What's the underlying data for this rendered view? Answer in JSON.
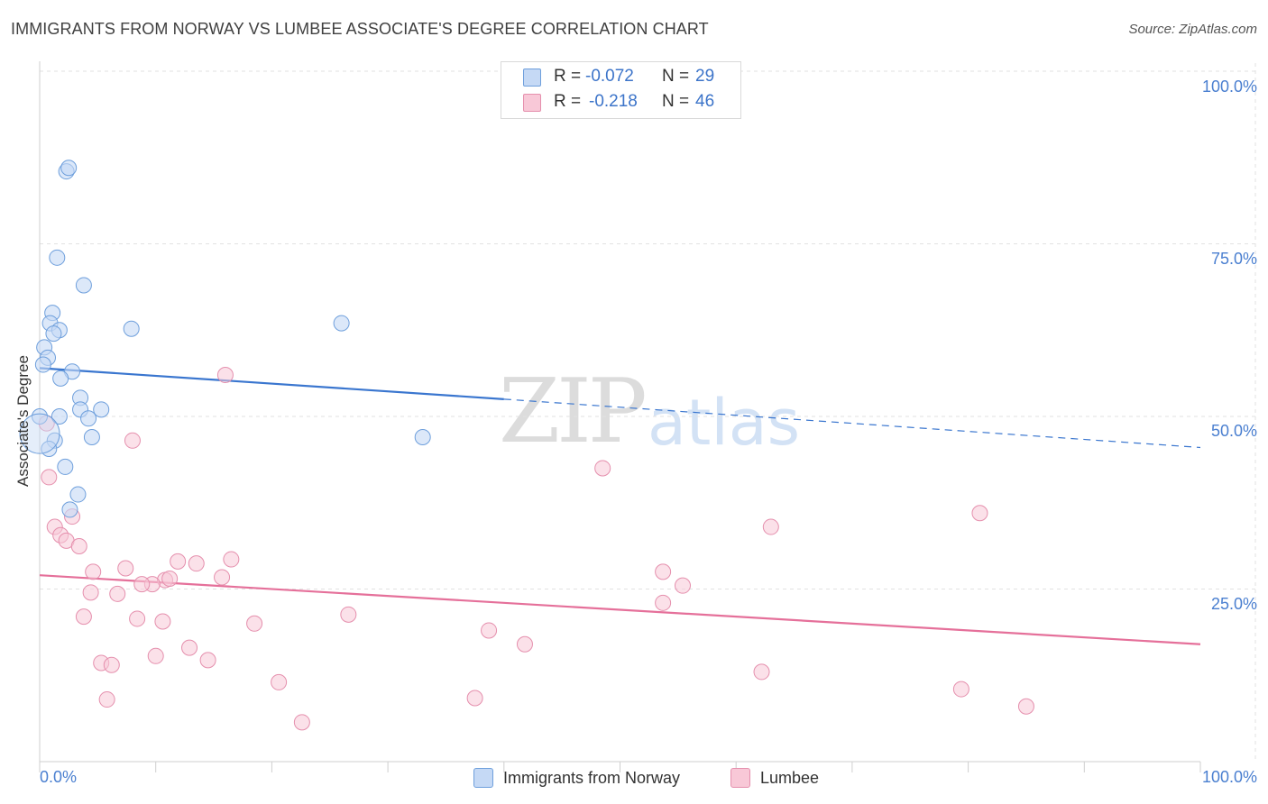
{
  "title": "IMMIGRANTS FROM NORWAY VS LUMBEE ASSOCIATE'S DEGREE CORRELATION CHART",
  "source": "Source: ZipAtlas.com",
  "watermark": {
    "zip": "ZIP",
    "atlas": "atlas"
  },
  "legend": {
    "rows": [
      {
        "r_label": "R =",
        "r_value": "-0.072",
        "n_label": "N =",
        "n_value": "29"
      },
      {
        "r_label": "R =",
        "r_value": "-0.218",
        "n_label": "N =",
        "n_value": "46"
      }
    ]
  },
  "bottom_legend": {
    "series1": "Immigrants from Norway",
    "series2": "Lumbee"
  },
  "colors": {
    "blue_fill": "#c5d9f5",
    "blue_stroke": "#6e9fdc",
    "blue_line": "#3a76cf",
    "pink_fill": "#f8c8d7",
    "pink_stroke": "#e58fad",
    "pink_line": "#e5709a",
    "tick_text": "#4a7fd0"
  },
  "chart_data": {
    "type": "scatter",
    "title": "IMMIGRANTS FROM NORWAY VS LUMBEE ASSOCIATE'S DEGREE CORRELATION CHART",
    "xlabel": "",
    "ylabel": "Associate's Degree",
    "xlim": [
      0,
      100
    ],
    "ylim": [
      0,
      100
    ],
    "x_tick_labels": [
      "0.0%",
      "100.0%"
    ],
    "y_tick_labels": [
      "100.0%",
      "75.0%",
      "50.0%",
      "25.0%"
    ],
    "grid": true,
    "legend_position": "top-center",
    "series": [
      {
        "name": "Immigrants from Norway",
        "r": -0.072,
        "n": 29,
        "trend": {
          "x": [
            0,
            40
          ],
          "y": [
            57.0,
            52.5
          ],
          "dashed_to": [
            100,
            45.5
          ]
        },
        "points": [
          [
            2.3,
            85.5
          ],
          [
            2.5,
            86.0
          ],
          [
            1.5,
            73.0
          ],
          [
            3.8,
            69.0
          ],
          [
            1.1,
            65.0
          ],
          [
            0.9,
            63.5
          ],
          [
            1.7,
            62.5
          ],
          [
            1.2,
            62.0
          ],
          [
            7.9,
            62.7
          ],
          [
            26.0,
            63.5
          ],
          [
            0.4,
            60.0
          ],
          [
            0.7,
            58.5
          ],
          [
            0.3,
            57.5
          ],
          [
            2.8,
            56.5
          ],
          [
            1.8,
            55.5
          ],
          [
            3.5,
            52.7
          ],
          [
            3.5,
            51.0
          ],
          [
            5.3,
            51.0
          ],
          [
            1.7,
            50.0
          ],
          [
            4.2,
            49.7
          ],
          [
            0.0,
            50.0
          ],
          [
            1.3,
            46.5
          ],
          [
            4.5,
            47.0
          ],
          [
            33.0,
            47.0
          ],
          [
            0.8,
            45.3
          ],
          [
            2.2,
            42.7
          ],
          [
            3.3,
            38.7
          ],
          [
            2.6,
            36.5
          ],
          [
            0.0,
            47.5
          ]
        ]
      },
      {
        "name": "Lumbee",
        "r": -0.218,
        "n": 46,
        "trend": {
          "x": [
            0,
            100
          ],
          "y": [
            27.0,
            17.0
          ]
        },
        "points": [
          [
            16.0,
            56.0
          ],
          [
            0.6,
            49.0
          ],
          [
            8.0,
            46.5
          ],
          [
            0.8,
            41.2
          ],
          [
            48.5,
            42.5
          ],
          [
            1.3,
            34.0
          ],
          [
            2.8,
            35.5
          ],
          [
            1.8,
            32.8
          ],
          [
            2.3,
            32.0
          ],
          [
            3.4,
            31.2
          ],
          [
            63.0,
            34.0
          ],
          [
            81.0,
            36.0
          ],
          [
            7.4,
            28.0
          ],
          [
            11.9,
            29.0
          ],
          [
            13.5,
            28.7
          ],
          [
            16.5,
            29.3
          ],
          [
            4.6,
            27.5
          ],
          [
            15.7,
            26.7
          ],
          [
            10.8,
            26.3
          ],
          [
            11.2,
            26.5
          ],
          [
            9.7,
            25.7
          ],
          [
            8.8,
            25.7
          ],
          [
            53.7,
            27.5
          ],
          [
            55.4,
            25.5
          ],
          [
            4.4,
            24.5
          ],
          [
            6.7,
            24.3
          ],
          [
            53.7,
            23.0
          ],
          [
            3.8,
            21.0
          ],
          [
            8.4,
            20.7
          ],
          [
            10.6,
            20.3
          ],
          [
            18.5,
            20.0
          ],
          [
            26.6,
            21.3
          ],
          [
            38.7,
            19.0
          ],
          [
            41.8,
            17.0
          ],
          [
            12.9,
            16.5
          ],
          [
            5.3,
            14.3
          ],
          [
            6.2,
            14.0
          ],
          [
            10.0,
            15.3
          ],
          [
            14.5,
            14.7
          ],
          [
            62.2,
            13.0
          ],
          [
            20.6,
            11.5
          ],
          [
            79.4,
            10.5
          ],
          [
            5.8,
            9.0
          ],
          [
            37.5,
            9.2
          ],
          [
            85.0,
            8.0
          ],
          [
            22.6,
            5.7
          ]
        ]
      }
    ]
  }
}
